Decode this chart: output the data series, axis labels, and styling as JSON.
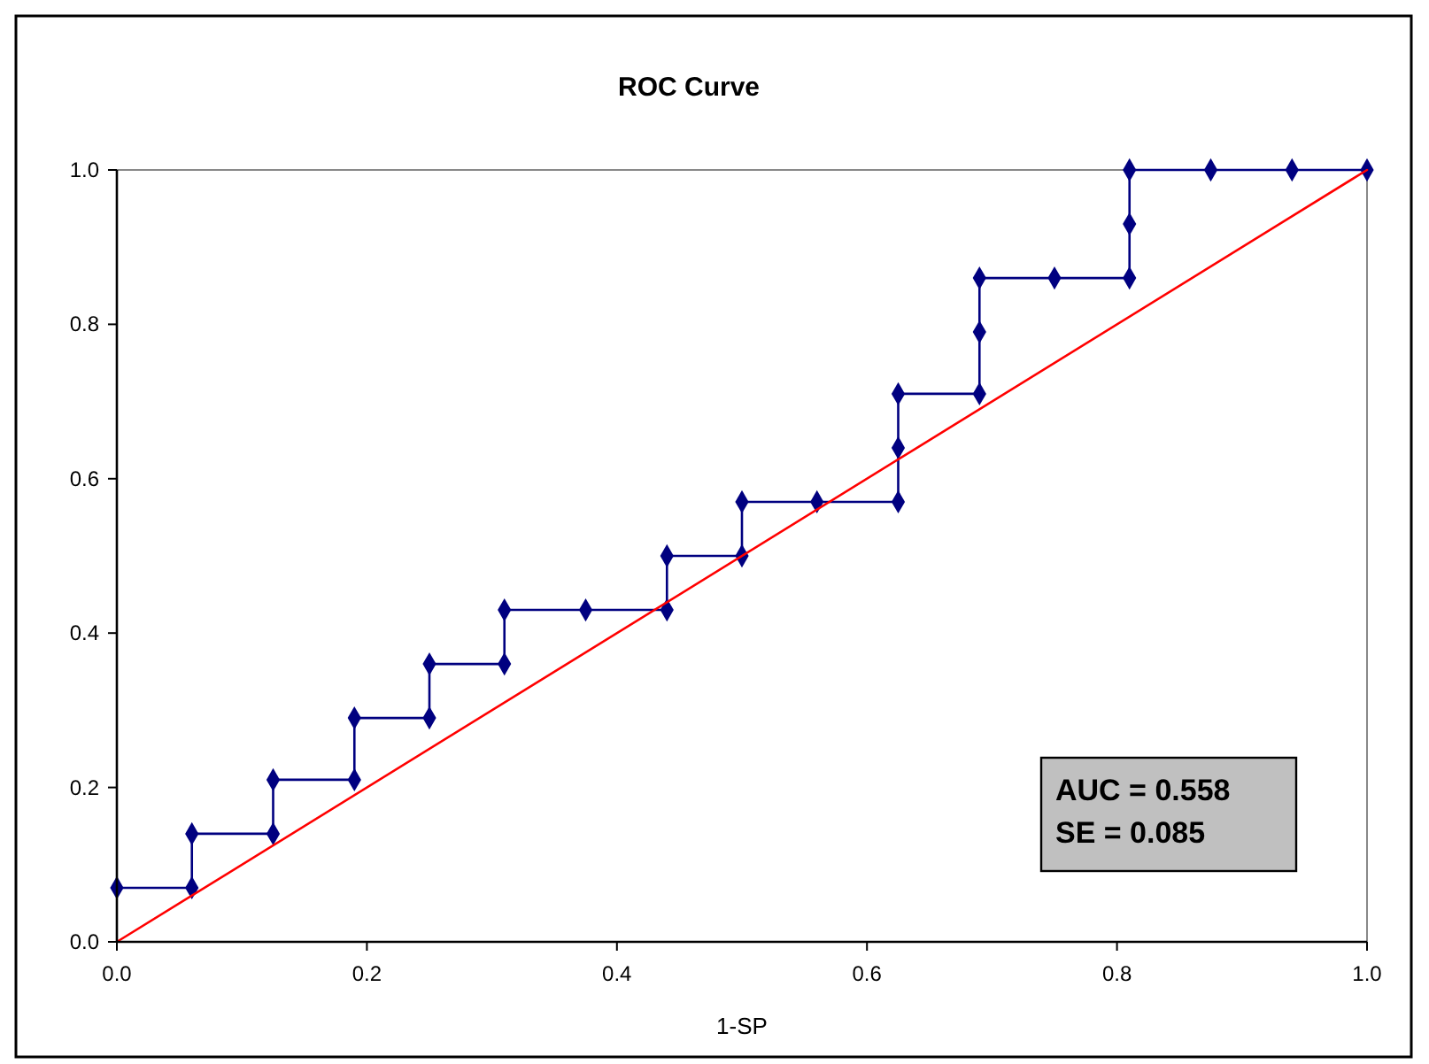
{
  "chart_data": {
    "type": "line",
    "title": "ROC Curve",
    "xlabel": "1-SP",
    "xlim": [
      0,
      1
    ],
    "ylim": [
      0,
      1
    ],
    "xticks": [
      {
        "value": 0,
        "label": "0.0"
      },
      {
        "value": 0.2,
        "label": "0.2"
      },
      {
        "value": 0.4,
        "label": "0.4"
      },
      {
        "value": 0.6,
        "label": "0.6"
      },
      {
        "value": 0.8,
        "label": "0.8"
      },
      {
        "value": 1,
        "label": "1.0"
      }
    ],
    "yticks": [
      {
        "value": 0,
        "label": "0.0"
      },
      {
        "value": 0.2,
        "label": "0.2"
      },
      {
        "value": 0.4,
        "label": "0.4"
      },
      {
        "value": 0.6,
        "label": "0.6"
      },
      {
        "value": 0.8,
        "label": "0.8"
      },
      {
        "value": 1,
        "label": "1.0"
      }
    ],
    "grid": false,
    "series": [
      {
        "color": "#000080",
        "marker": "diamond",
        "x": [
          0,
          0.06,
          0.06,
          0.125,
          0.125,
          0.19,
          0.19,
          0.25,
          0.25,
          0.31,
          0.31,
          0.375,
          0.44,
          0.44,
          0.5,
          0.5,
          0.56,
          0.625,
          0.625,
          0.625,
          0.69,
          0.69,
          0.69,
          0.75,
          0.81,
          0.81,
          0.81,
          0.875,
          0.94,
          1
        ],
        "values": [
          0.07,
          0.07,
          0.14,
          0.14,
          0.21,
          0.21,
          0.29,
          0.29,
          0.36,
          0.36,
          0.43,
          0.43,
          0.43,
          0.5,
          0.5,
          0.57,
          0.57,
          0.57,
          0.64,
          0.71,
          0.71,
          0.79,
          0.86,
          0.86,
          0.86,
          0.93,
          1,
          1,
          1,
          1
        ]
      },
      {
        "color": "#ff0000",
        "marker": "none",
        "x": [
          0,
          1
        ],
        "values": [
          0,
          1
        ]
      }
    ],
    "annotations": [
      "AUC = 0.558",
      "SE = 0.085"
    ]
  }
}
